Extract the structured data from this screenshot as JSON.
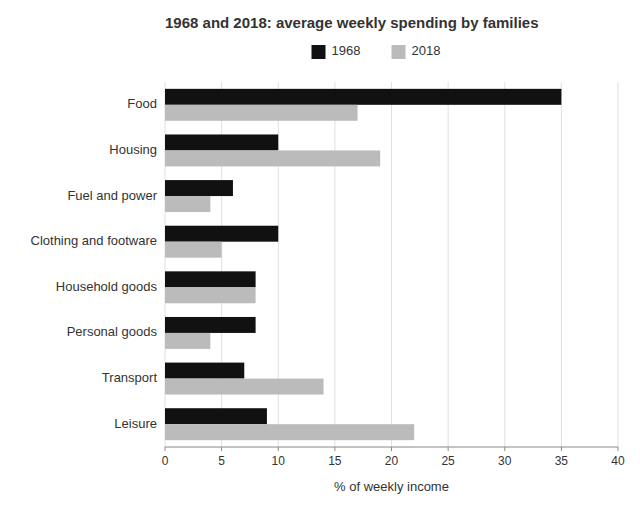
{
  "chart_data": {
    "type": "bar",
    "orientation": "horizontal",
    "title": "1968 and 2018: average weekly spending by families",
    "categories": [
      "Food",
      "Housing",
      "Fuel and power",
      "Clothing and footware",
      "Household goods",
      "Personal goods",
      "Transport",
      "Leisure"
    ],
    "series": [
      {
        "name": "1968",
        "color": "#111111",
        "values": [
          35,
          10,
          6,
          10,
          8,
          8,
          7,
          9
        ]
      },
      {
        "name": "2018",
        "color": "#bbbbbb",
        "values": [
          17,
          19,
          4,
          5,
          8,
          4,
          14,
          22
        ]
      }
    ],
    "xlabel": "% of weekly income",
    "xlim": [
      0,
      40
    ],
    "xticks": [
      0,
      5,
      10,
      15,
      20,
      25,
      30,
      35,
      40
    ],
    "grid": true,
    "legend": "top"
  }
}
